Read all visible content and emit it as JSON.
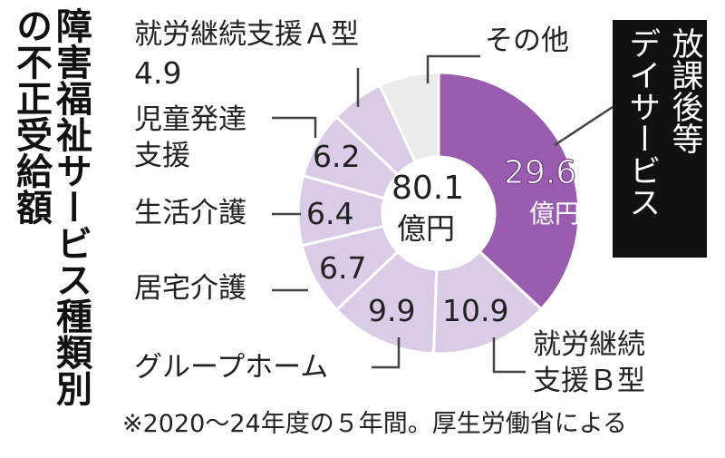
{
  "chart_data": {
    "type": "donut",
    "title": "障害福祉サービス種類別の不正受給額",
    "center_value": 80.1,
    "unit": "億円",
    "categories": [
      "放課後等\nデイサービス",
      "就労継続\n支援Ｂ型",
      "グループホーム",
      "居宅介護",
      "生活介護",
      "児童発達\n支援",
      "就労継続支援Ａ型",
      "その他"
    ],
    "values": [
      29.6,
      10.9,
      9.9,
      6.7,
      6.4,
      6.2,
      4.9,
      5.5
    ],
    "colors": [
      "#9a5cae",
      "#dccbe6",
      "#dccbe6",
      "#dccbe6",
      "#dccbe6",
      "#dccbe6",
      "#dccbe6",
      "#ebebeb"
    ],
    "note": "※2020〜24年度の５年間。厚生労働省による"
  }
}
